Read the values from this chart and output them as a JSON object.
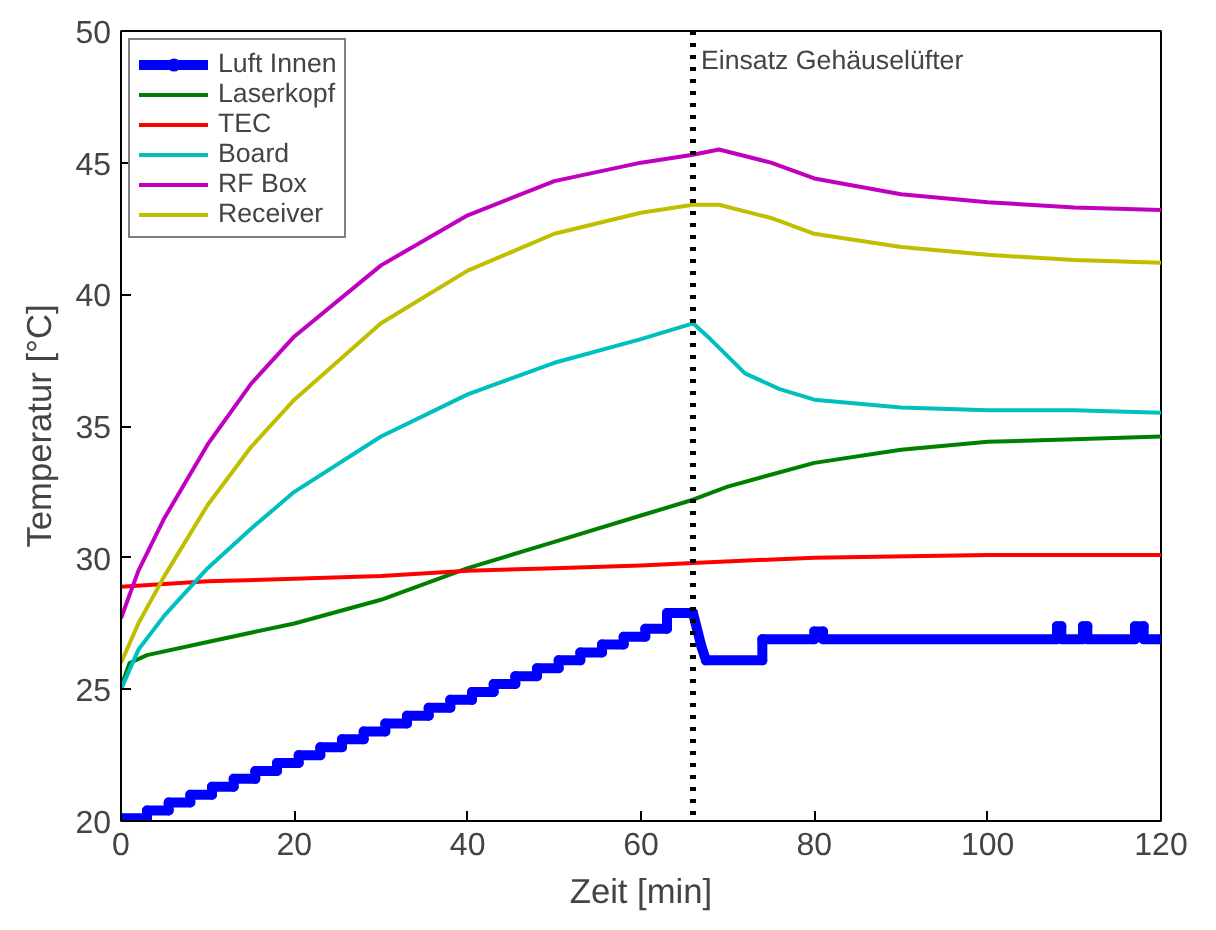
{
  "chart_data": {
    "type": "line",
    "xlabel": "Zeit [min]",
    "ylabel": "Temperatur [°C]",
    "xlim": [
      0,
      120
    ],
    "ylim": [
      20,
      50
    ],
    "xticks": [
      0,
      20,
      40,
      60,
      80,
      100,
      120
    ],
    "yticks": [
      20,
      25,
      30,
      35,
      40,
      45,
      50
    ],
    "grid": false,
    "legend": "top left",
    "line_style": "solid",
    "ref_lines": [
      {
        "axis": "x",
        "value": 66,
        "label": "Einsatz Gehäuselüfter",
        "color": "#000000",
        "line_style": "dotted"
      }
    ],
    "series": [
      {
        "name": "Luft Innen",
        "color": "#0000ff",
        "marker": "circle",
        "x": [
          0,
          3,
          3,
          5.5,
          5.5,
          8,
          8,
          10.5,
          10.5,
          13,
          13,
          15.5,
          15.5,
          18,
          18,
          20.5,
          20.5,
          23,
          23,
          25.5,
          25.5,
          28,
          28,
          30.5,
          30.5,
          33,
          33,
          35.5,
          35.5,
          38,
          38,
          40.5,
          40.5,
          43,
          43,
          45.5,
          45.5,
          48,
          48,
          50.5,
          50.5,
          53,
          53,
          55.5,
          55.5,
          58,
          58,
          60.5,
          60.5,
          63,
          63,
          66,
          67,
          67.5,
          74,
          74,
          80,
          80,
          81,
          81,
          108,
          108,
          108.5,
          108.5,
          111,
          111,
          111.5,
          111.5,
          117,
          117,
          118,
          118,
          120
        ],
        "values": [
          20.1,
          20.1,
          20.4,
          20.4,
          20.7,
          20.7,
          21.0,
          21.0,
          21.3,
          21.3,
          21.6,
          21.6,
          21.9,
          21.9,
          22.2,
          22.2,
          22.5,
          22.5,
          22.8,
          22.8,
          23.1,
          23.1,
          23.4,
          23.4,
          23.7,
          23.7,
          24.0,
          24.0,
          24.3,
          24.3,
          24.6,
          24.6,
          24.9,
          24.9,
          25.2,
          25.2,
          25.5,
          25.5,
          25.8,
          25.8,
          26.1,
          26.1,
          26.4,
          26.4,
          26.7,
          26.7,
          27.0,
          27.0,
          27.3,
          27.3,
          27.9,
          27.9,
          26.6,
          26.1,
          26.1,
          26.9,
          26.9,
          27.2,
          27.2,
          26.9,
          26.9,
          27.4,
          27.4,
          26.9,
          26.9,
          27.4,
          27.4,
          26.9,
          26.9,
          27.4,
          27.4,
          26.9,
          26.9
        ]
      },
      {
        "name": "Laserkopf",
        "color": "#008000",
        "x": [
          0,
          1,
          3,
          10,
          20,
          30,
          40,
          50,
          60,
          66,
          70,
          80,
          90,
          100,
          110,
          120
        ],
        "values": [
          25.1,
          26.0,
          26.3,
          26.8,
          27.5,
          28.4,
          29.6,
          30.6,
          31.6,
          32.2,
          32.7,
          33.6,
          34.1,
          34.4,
          34.5,
          34.6
        ]
      },
      {
        "name": "TEC",
        "color": "#ff0000",
        "x": [
          0,
          10,
          20,
          30,
          40,
          50,
          60,
          66,
          80,
          100,
          120
        ],
        "values": [
          28.9,
          29.1,
          29.2,
          29.3,
          29.5,
          29.6,
          29.7,
          29.8,
          30.0,
          30.1,
          30.1
        ]
      },
      {
        "name": "Board",
        "color": "#00bfbf",
        "x": [
          0,
          2,
          5,
          10,
          15,
          20,
          30,
          40,
          50,
          60,
          66,
          68,
          72,
          76,
          80,
          90,
          100,
          110,
          120
        ],
        "values": [
          25.0,
          26.5,
          27.8,
          29.6,
          31.1,
          32.5,
          34.6,
          36.2,
          37.4,
          38.3,
          38.9,
          38.3,
          37.0,
          36.4,
          36.0,
          35.7,
          35.6,
          35.6,
          35.5
        ]
      },
      {
        "name": "RF Box",
        "color": "#bf00bf",
        "x": [
          0,
          2,
          5,
          10,
          15,
          20,
          30,
          40,
          50,
          60,
          66,
          69,
          75,
          80,
          90,
          100,
          110,
          120
        ],
        "values": [
          27.7,
          29.5,
          31.5,
          34.3,
          36.6,
          38.4,
          41.1,
          43.0,
          44.3,
          45.0,
          45.3,
          45.5,
          45.0,
          44.4,
          43.8,
          43.5,
          43.3,
          43.2
        ]
      },
      {
        "name": "Receiver",
        "color": "#bfbf00",
        "x": [
          0,
          2,
          5,
          10,
          15,
          20,
          30,
          40,
          50,
          60,
          66,
          69,
          75,
          80,
          90,
          100,
          110,
          120
        ],
        "values": [
          26.0,
          27.5,
          29.3,
          32.0,
          34.2,
          36.0,
          38.9,
          40.9,
          42.3,
          43.1,
          43.4,
          43.4,
          42.9,
          42.3,
          41.8,
          41.5,
          41.3,
          41.2
        ]
      }
    ]
  }
}
